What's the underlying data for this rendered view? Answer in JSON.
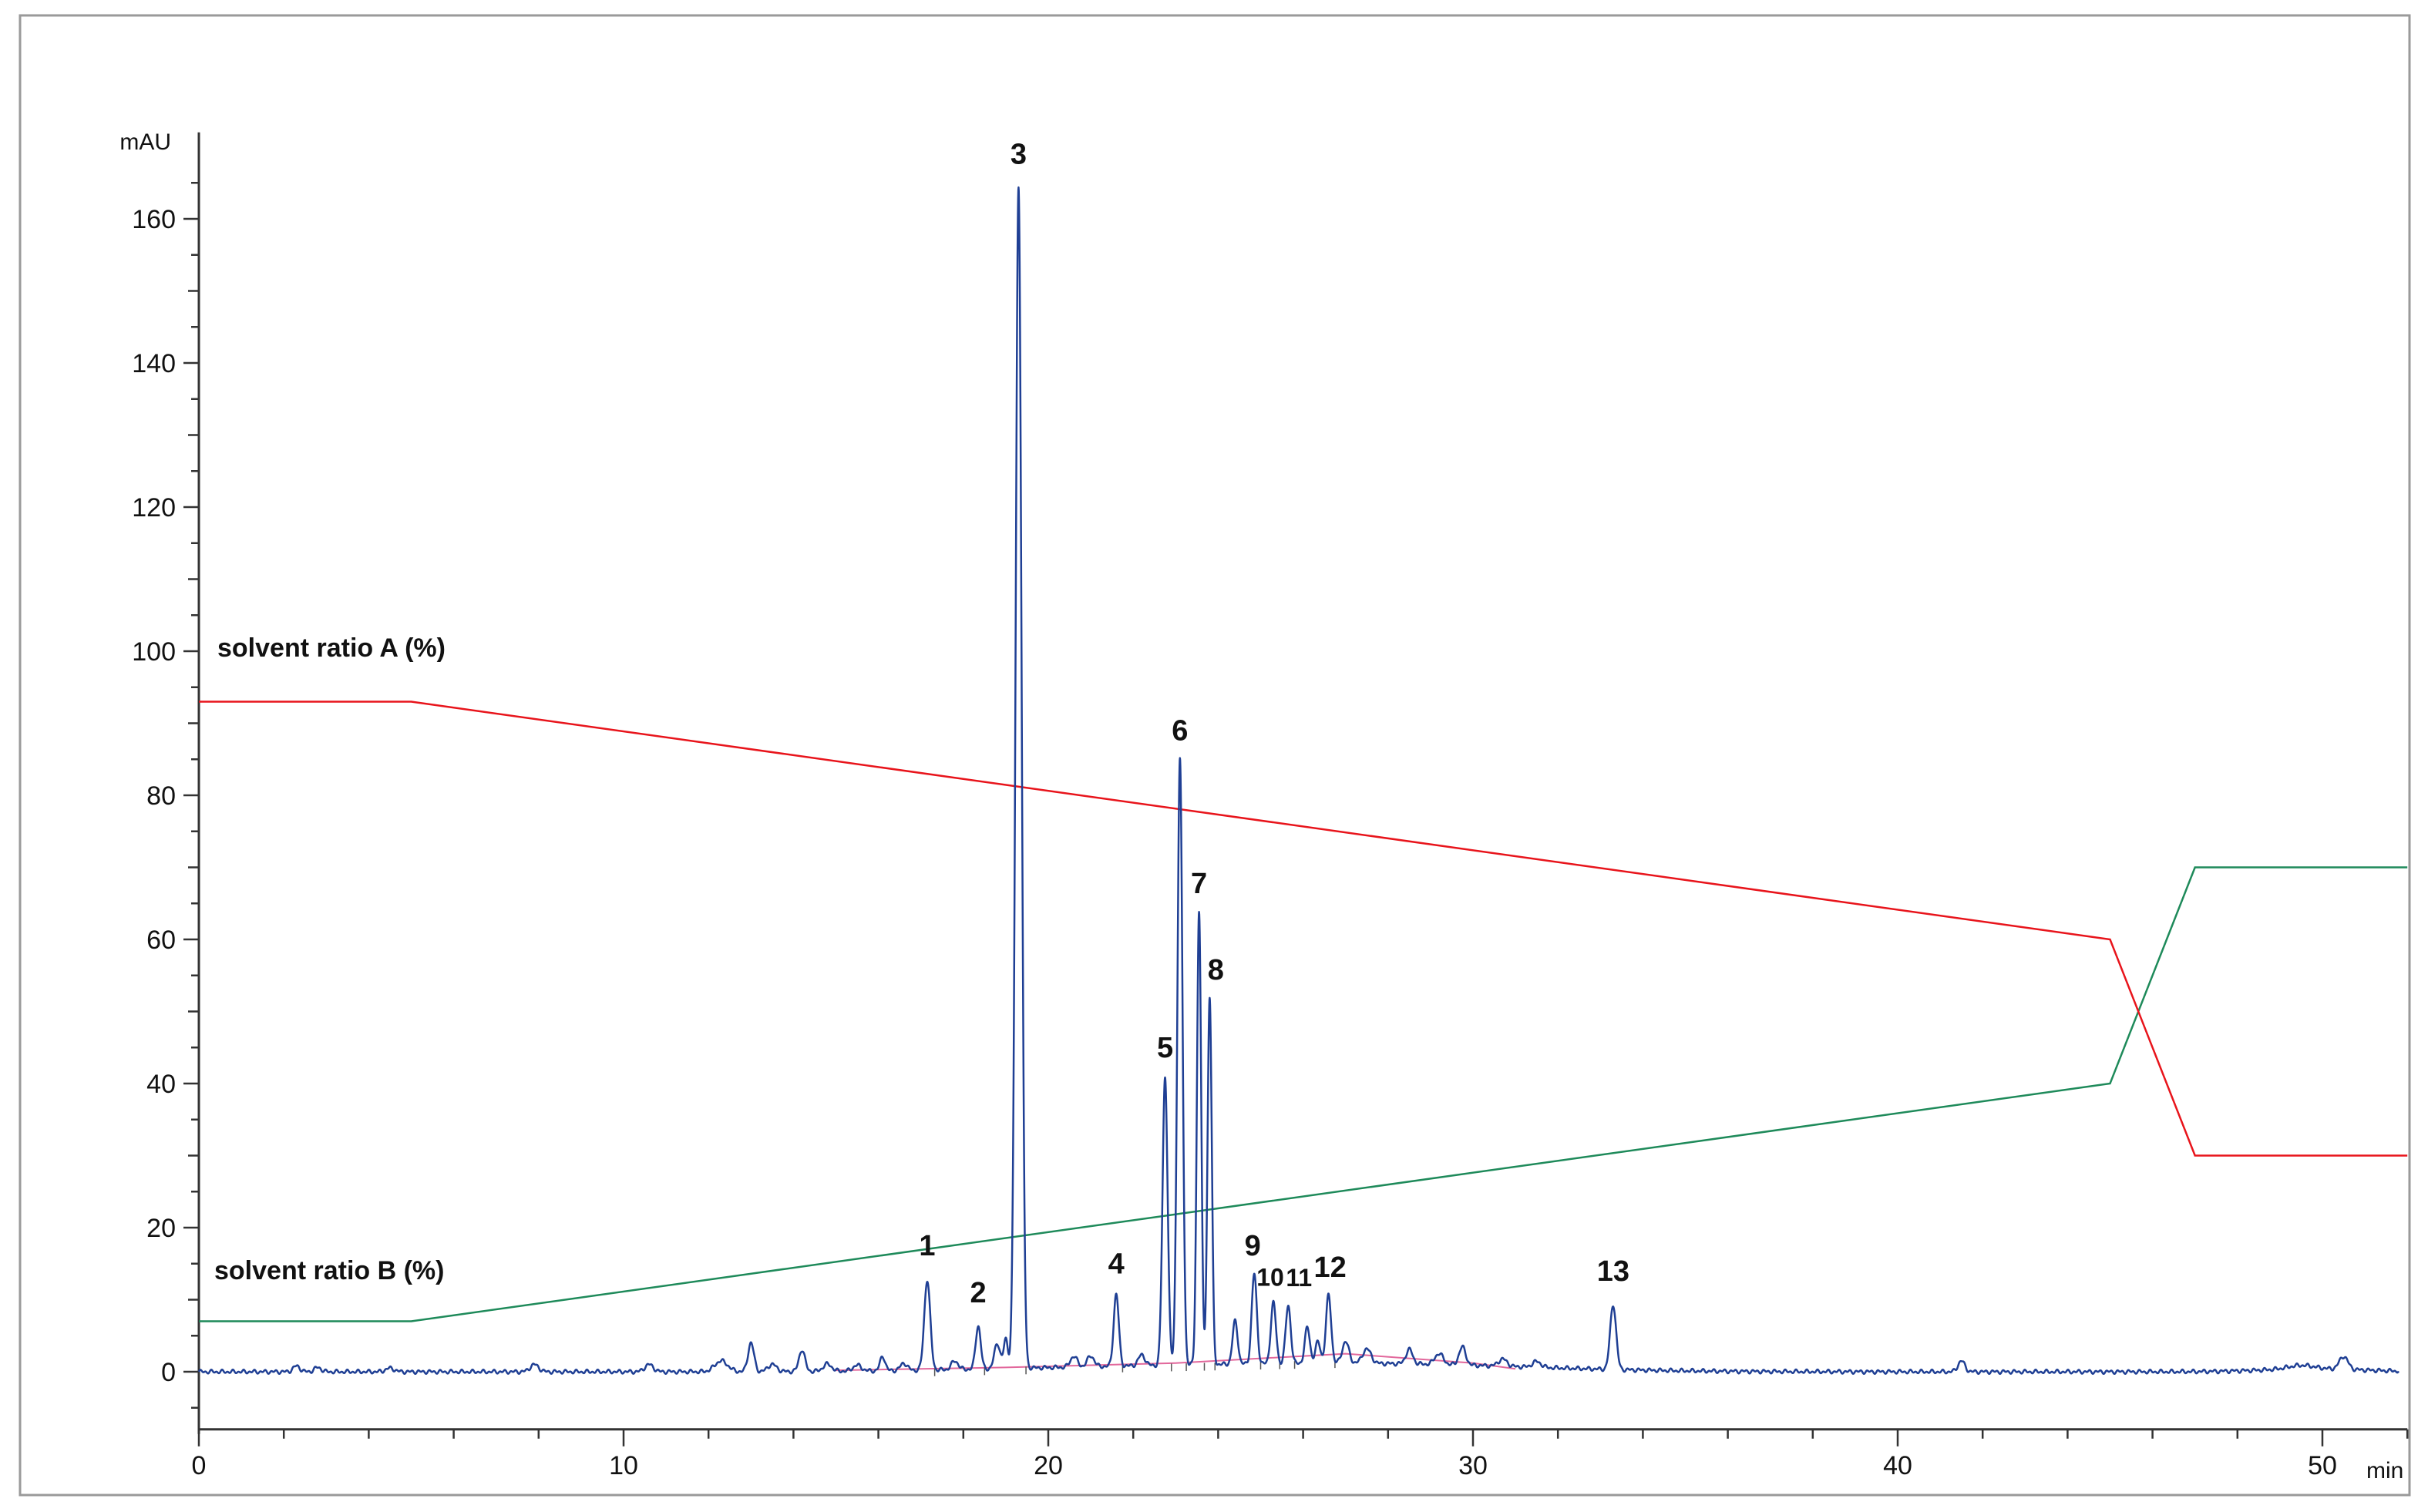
{
  "chart_data": {
    "type": "line",
    "title": "",
    "xlabel": "",
    "ylabel": "",
    "x_unit": "min",
    "y_unit": "mAU",
    "xlim": [
      0,
      52
    ],
    "ylim": [
      -8,
      172
    ],
    "x_ticks": [
      0,
      10,
      20,
      30,
      40,
      50
    ],
    "y_ticks": [
      0,
      20,
      40,
      60,
      80,
      100,
      120,
      140,
      160
    ],
    "grid": false,
    "colors": {
      "chromatogram": "#1f3f94",
      "solvent_a": "#e8141b",
      "solvent_b": "#1e8a5a",
      "baseline": "#e2689c",
      "axis": "#333333",
      "frame": "#9a9a9a"
    },
    "chromatogram": {
      "name": "",
      "baseline_noise_mAU": 0.3,
      "peaks": [
        {
          "label": "1",
          "x": 17.15,
          "height": 12.5,
          "width": 0.07
        },
        {
          "label": "2",
          "x": 18.35,
          "height": 6.0,
          "width": 0.06
        },
        {
          "label": "3",
          "x": 19.3,
          "height": 164,
          "width": 0.07
        },
        {
          "label": "4",
          "x": 21.6,
          "height": 10.0,
          "width": 0.06
        },
        {
          "label": "5",
          "x": 22.75,
          "height": 40,
          "width": 0.06
        },
        {
          "label": "6",
          "x": 23.1,
          "height": 84,
          "width": 0.06
        },
        {
          "label": "7",
          "x": 23.55,
          "height": 63,
          "width": 0.05
        },
        {
          "label": "8",
          "x": 23.8,
          "height": 51,
          "width": 0.05
        },
        {
          "label": "9",
          "x": 24.85,
          "height": 12.5,
          "width": 0.06
        },
        {
          "label": "10",
          "x": 25.3,
          "height": 8.5,
          "width": 0.06
        },
        {
          "label": "11",
          "x": 25.65,
          "height": 8.0,
          "width": 0.06
        },
        {
          "label": "12",
          "x": 26.6,
          "height": 9.5,
          "width": 0.06
        },
        {
          "label": "13",
          "x": 33.3,
          "height": 9.0,
          "width": 0.07
        }
      ],
      "minor_peaks": [
        {
          "x": 2.3,
          "height": 0.8,
          "width": 0.08
        },
        {
          "x": 2.8,
          "height": 0.6,
          "width": 0.08
        },
        {
          "x": 4.5,
          "height": 0.5,
          "width": 0.1
        },
        {
          "x": 7.9,
          "height": 1.0,
          "width": 0.1
        },
        {
          "x": 10.6,
          "height": 1.0,
          "width": 0.1
        },
        {
          "x": 12.3,
          "height": 1.5,
          "width": 0.15
        },
        {
          "x": 13.0,
          "height": 4.0,
          "width": 0.07
        },
        {
          "x": 13.5,
          "height": 1.0,
          "width": 0.1
        },
        {
          "x": 14.2,
          "height": 3.0,
          "width": 0.07
        },
        {
          "x": 14.8,
          "height": 1.0,
          "width": 0.1
        },
        {
          "x": 15.5,
          "height": 0.8,
          "width": 0.1
        },
        {
          "x": 16.1,
          "height": 2.0,
          "width": 0.06
        },
        {
          "x": 16.6,
          "height": 1.0,
          "width": 0.08
        },
        {
          "x": 17.8,
          "height": 1.2,
          "width": 0.08
        },
        {
          "x": 18.8,
          "height": 3.5,
          "width": 0.07
        },
        {
          "x": 19.0,
          "height": 4.0,
          "width": 0.05
        },
        {
          "x": 20.6,
          "height": 1.5,
          "width": 0.08
        },
        {
          "x": 21.0,
          "height": 1.5,
          "width": 0.08
        },
        {
          "x": 22.2,
          "height": 1.5,
          "width": 0.08
        },
        {
          "x": 24.4,
          "height": 6.0,
          "width": 0.06
        },
        {
          "x": 26.1,
          "height": 5.0,
          "width": 0.06
        },
        {
          "x": 26.35,
          "height": 3.0,
          "width": 0.06
        },
        {
          "x": 27.0,
          "height": 3.0,
          "width": 0.08
        },
        {
          "x": 27.5,
          "height": 2.0,
          "width": 0.1
        },
        {
          "x": 28.5,
          "height": 2.0,
          "width": 0.08
        },
        {
          "x": 29.2,
          "height": 1.5,
          "width": 0.1
        },
        {
          "x": 29.75,
          "height": 2.5,
          "width": 0.08
        },
        {
          "x": 30.7,
          "height": 1.0,
          "width": 0.1
        },
        {
          "x": 31.5,
          "height": 0.8,
          "width": 0.1
        },
        {
          "x": 41.5,
          "height": 1.5,
          "width": 0.08
        },
        {
          "x": 49.5,
          "height": 0.5,
          "width": 0.3
        },
        {
          "x": 50.5,
          "height": 1.8,
          "width": 0.1
        }
      ],
      "humps": [
        {
          "x": 22.0,
          "height": 0.6,
          "width": 3.5
        },
        {
          "x": 28.0,
          "height": 1.0,
          "width": 3.5
        },
        {
          "x": 49.8,
          "height": 0.4,
          "width": 1.2
        }
      ]
    },
    "solvent_ratio_a": {
      "name": "solvent ratio A (%)",
      "points": [
        [
          0,
          93
        ],
        [
          5,
          93
        ],
        [
          45,
          60
        ],
        [
          47,
          30
        ],
        [
          52,
          30
        ]
      ]
    },
    "solvent_ratio_b": {
      "name": "solvent ratio B (%)",
      "points": [
        [
          0,
          7
        ],
        [
          5,
          7
        ],
        [
          45,
          40
        ],
        [
          47,
          70
        ],
        [
          52,
          70
        ]
      ]
    },
    "integration_baseline": [
      [
        15,
        0.2
      ],
      [
        19,
        0.6
      ],
      [
        23,
        1.2
      ],
      [
        27,
        2.5
      ],
      [
        30,
        1.2
      ],
      [
        31,
        0.4
      ]
    ]
  }
}
